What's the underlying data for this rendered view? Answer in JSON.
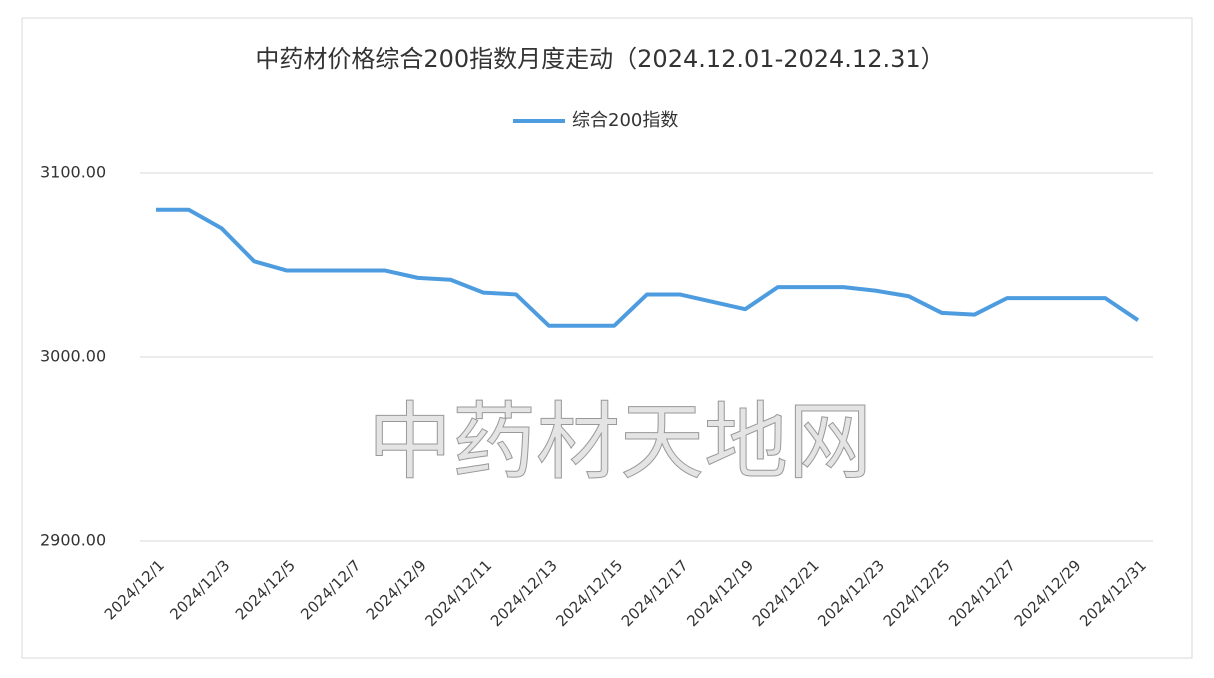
{
  "chart_data": {
    "type": "line",
    "title": "中药材价格综合200指数月度走动（2024.12.01-2024.12.31）",
    "watermark": "中药材天地网",
    "categories": [
      "2024/12/1",
      null,
      "2024/12/3",
      null,
      "2024/12/5",
      null,
      "2024/12/7",
      null,
      "2024/12/9",
      null,
      "2024/12/11",
      null,
      "2024/12/13",
      null,
      "2024/12/15",
      null,
      "2024/12/17",
      null,
      "2024/12/19",
      null,
      "2024/12/21",
      null,
      "2024/12/23",
      null,
      "2024/12/25",
      null,
      "2024/12/27",
      null,
      "2024/12/29",
      null,
      "2024/12/31"
    ],
    "series": [
      {
        "name": "综合200指数",
        "color": "#4e9ce0",
        "values": [
          3080,
          3080,
          3070,
          3052,
          3047,
          3047,
          3047,
          3047,
          3043,
          3042,
          3035,
          3034,
          3017,
          3017,
          3017,
          3034,
          3034,
          3030,
          3026,
          3038,
          3038,
          3038,
          3036,
          3033,
          3024,
          3023,
          3032,
          3032,
          3032,
          3032,
          3020
        ]
      }
    ],
    "ylim": [
      2900,
      3100
    ],
    "yticks": [
      {
        "value": 2900,
        "label": "2900.00"
      },
      {
        "value": 3000,
        "label": "3000.00"
      },
      {
        "value": 3100,
        "label": "3100.00"
      }
    ],
    "grid": true,
    "legend": "top"
  }
}
